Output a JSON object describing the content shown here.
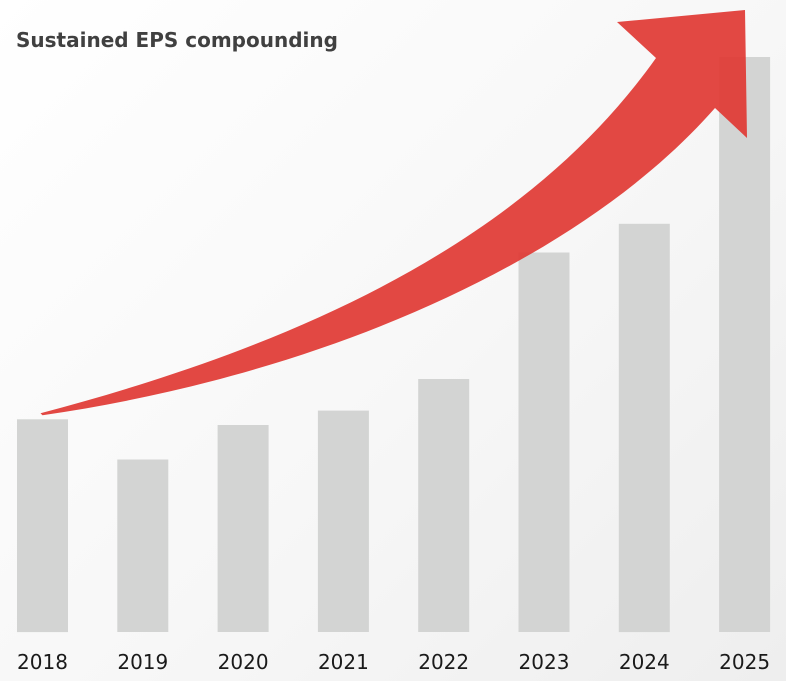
{
  "chart_data": {
    "type": "bar",
    "title": "Sustained EPS compounding",
    "xlabel": "",
    "ylabel": "",
    "categories": [
      "2018",
      "2019",
      "2020",
      "2021",
      "2022",
      "2023",
      "2024",
      "2025"
    ],
    "values": [
      37,
      30,
      36,
      38.5,
      44,
      66,
      71,
      100
    ],
    "ylim": [
      0,
      100
    ],
    "grid": false,
    "legend": "none",
    "annotations": [
      {
        "kind": "trend-arrow",
        "from_category": "2018",
        "to_category": "2025"
      }
    ],
    "colors": {
      "bar": "#d3d4d3",
      "arrow": "#e03a35"
    }
  }
}
